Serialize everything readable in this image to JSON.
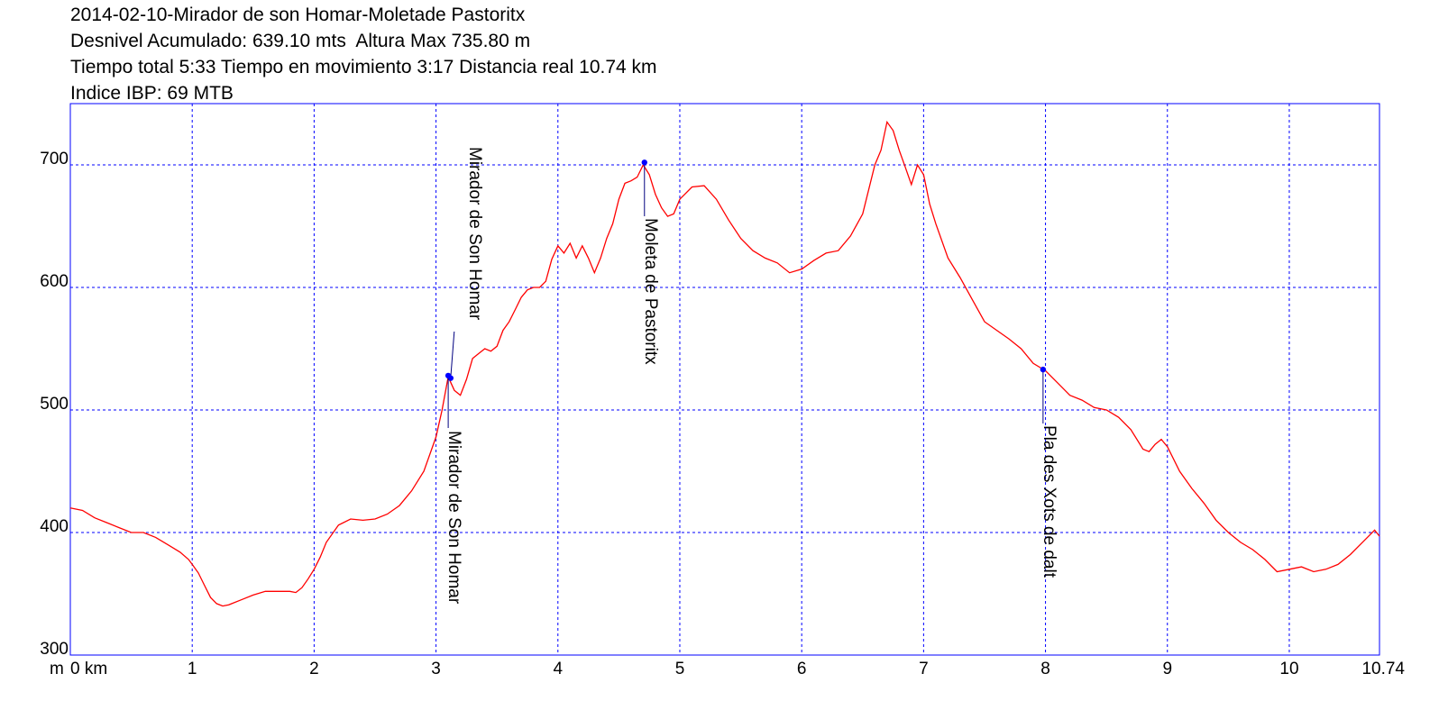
{
  "header": {
    "title": "2014-02-10-Mirador de son Homar-Moletade Pastoritx",
    "line2": "Desnivel Acumulado: 639.10 mts  Altura Max 735.80 m",
    "line3": "Tiempo total 5:33 Tiempo en movimiento 3:17 Distancia real 10.74 km",
    "line4": "Indice IBP: 69 MTB"
  },
  "colors": {
    "profile": "#ff0000",
    "frame": "#0000ff",
    "grid": "#0000ff",
    "waypoint": "#0000ff",
    "leader": "#000080"
  },
  "chart_data": {
    "type": "line",
    "x_unit_label": "0 km",
    "y_unit_label": "m",
    "xlim": [
      0,
      10.74
    ],
    "ylim": [
      300,
      750
    ],
    "x_ticks": [
      {
        "value": 0,
        "label": "0 km"
      },
      {
        "value": 1,
        "label": "1"
      },
      {
        "value": 2,
        "label": "2"
      },
      {
        "value": 3,
        "label": "3"
      },
      {
        "value": 4,
        "label": "4"
      },
      {
        "value": 5,
        "label": "5"
      },
      {
        "value": 6,
        "label": "6"
      },
      {
        "value": 7,
        "label": "7"
      },
      {
        "value": 8,
        "label": "8"
      },
      {
        "value": 9,
        "label": "9"
      },
      {
        "value": 10,
        "label": "10"
      },
      {
        "value": 10.74,
        "label": "10.74"
      }
    ],
    "y_ticks": [
      300,
      400,
      500,
      600,
      700
    ],
    "grid": true,
    "series": [
      {
        "points": [
          [
            0.0,
            420
          ],
          [
            0.1,
            418
          ],
          [
            0.2,
            412
          ],
          [
            0.3,
            408
          ],
          [
            0.4,
            404
          ],
          [
            0.5,
            400
          ],
          [
            0.6,
            400
          ],
          [
            0.7,
            396
          ],
          [
            0.8,
            390
          ],
          [
            0.9,
            384
          ],
          [
            0.97,
            378
          ],
          [
            1.0,
            374
          ],
          [
            1.05,
            367
          ],
          [
            1.1,
            357
          ],
          [
            1.15,
            347
          ],
          [
            1.2,
            342
          ],
          [
            1.25,
            340
          ],
          [
            1.3,
            341
          ],
          [
            1.4,
            345
          ],
          [
            1.5,
            349
          ],
          [
            1.6,
            352
          ],
          [
            1.7,
            352
          ],
          [
            1.8,
            352
          ],
          [
            1.85,
            351
          ],
          [
            1.9,
            355
          ],
          [
            1.95,
            362
          ],
          [
            2.0,
            370
          ],
          [
            2.05,
            380
          ],
          [
            2.1,
            392
          ],
          [
            2.2,
            406
          ],
          [
            2.3,
            411
          ],
          [
            2.4,
            410
          ],
          [
            2.5,
            411
          ],
          [
            2.6,
            415
          ],
          [
            2.7,
            422
          ],
          [
            2.8,
            434
          ],
          [
            2.9,
            450
          ],
          [
            3.0,
            478
          ],
          [
            3.05,
            500
          ],
          [
            3.1,
            527
          ],
          [
            3.15,
            516
          ],
          [
            3.2,
            512
          ],
          [
            3.25,
            525
          ],
          [
            3.3,
            542
          ],
          [
            3.35,
            546
          ],
          [
            3.4,
            550
          ],
          [
            3.45,
            548
          ],
          [
            3.5,
            552
          ],
          [
            3.55,
            565
          ],
          [
            3.6,
            572
          ],
          [
            3.65,
            582
          ],
          [
            3.7,
            592
          ],
          [
            3.75,
            598
          ],
          [
            3.8,
            600
          ],
          [
            3.85,
            600
          ],
          [
            3.9,
            605
          ],
          [
            3.95,
            623
          ],
          [
            4.0,
            634
          ],
          [
            4.05,
            628
          ],
          [
            4.1,
            636
          ],
          [
            4.15,
            624
          ],
          [
            4.2,
            634
          ],
          [
            4.25,
            624
          ],
          [
            4.3,
            612
          ],
          [
            4.35,
            624
          ],
          [
            4.4,
            640
          ],
          [
            4.45,
            652
          ],
          [
            4.5,
            672
          ],
          [
            4.55,
            685
          ],
          [
            4.6,
            687
          ],
          [
            4.65,
            690
          ],
          [
            4.7,
            700
          ],
          [
            4.75,
            692
          ],
          [
            4.8,
            676
          ],
          [
            4.85,
            665
          ],
          [
            4.9,
            658
          ],
          [
            4.95,
            660
          ],
          [
            5.0,
            672
          ],
          [
            5.1,
            682
          ],
          [
            5.2,
            683
          ],
          [
            5.3,
            672
          ],
          [
            5.4,
            655
          ],
          [
            5.5,
            640
          ],
          [
            5.6,
            630
          ],
          [
            5.7,
            624
          ],
          [
            5.8,
            620
          ],
          [
            5.9,
            612
          ],
          [
            6.0,
            615
          ],
          [
            6.1,
            622
          ],
          [
            6.2,
            628
          ],
          [
            6.3,
            630
          ],
          [
            6.4,
            642
          ],
          [
            6.5,
            660
          ],
          [
            6.6,
            700
          ],
          [
            6.65,
            712
          ],
          [
            6.7,
            735
          ],
          [
            6.75,
            728
          ],
          [
            6.8,
            712
          ],
          [
            6.85,
            698
          ],
          [
            6.9,
            684
          ],
          [
            6.95,
            700
          ],
          [
            7.0,
            692
          ],
          [
            7.05,
            668
          ],
          [
            7.1,
            652
          ],
          [
            7.2,
            624
          ],
          [
            7.3,
            608
          ],
          [
            7.4,
            590
          ],
          [
            7.5,
            572
          ],
          [
            7.6,
            565
          ],
          [
            7.7,
            558
          ],
          [
            7.8,
            550
          ],
          [
            7.9,
            538
          ],
          [
            8.0,
            532
          ],
          [
            8.1,
            522
          ],
          [
            8.2,
            512
          ],
          [
            8.3,
            508
          ],
          [
            8.4,
            502
          ],
          [
            8.5,
            500
          ],
          [
            8.6,
            494
          ],
          [
            8.7,
            484
          ],
          [
            8.8,
            468
          ],
          [
            8.85,
            466
          ],
          [
            8.9,
            472
          ],
          [
            8.95,
            476
          ],
          [
            9.0,
            470
          ],
          [
            9.1,
            450
          ],
          [
            9.2,
            436
          ],
          [
            9.3,
            424
          ],
          [
            9.4,
            410
          ],
          [
            9.5,
            400
          ],
          [
            9.6,
            392
          ],
          [
            9.7,
            386
          ],
          [
            9.8,
            378
          ],
          [
            9.9,
            368
          ],
          [
            10.0,
            370
          ],
          [
            10.1,
            372
          ],
          [
            10.2,
            368
          ],
          [
            10.3,
            370
          ],
          [
            10.4,
            374
          ],
          [
            10.5,
            382
          ],
          [
            10.6,
            392
          ],
          [
            10.7,
            402
          ],
          [
            10.74,
            397
          ]
        ]
      }
    ],
    "waypoints": [
      {
        "name": "Mirador de Son Homar",
        "x": 3.12,
        "y": 526
      },
      {
        "name": "Mirador de Son Homar",
        "x": 3.1,
        "y": 528
      },
      {
        "name": "Moleta de Pastoritx",
        "x": 4.71,
        "y": 702
      },
      {
        "name": "Pla des Xots de dalt",
        "x": 7.98,
        "y": 533
      }
    ]
  }
}
